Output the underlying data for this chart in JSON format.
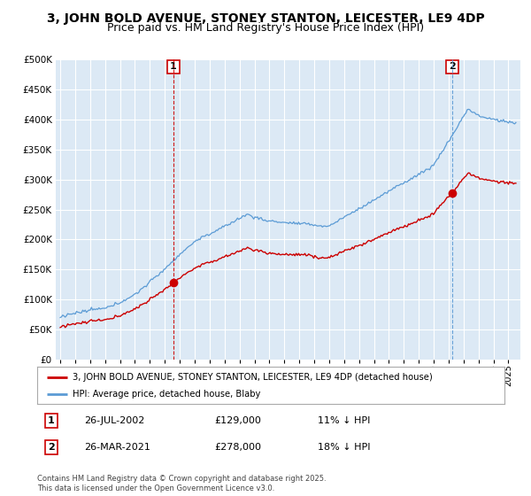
{
  "title": "3, JOHN BOLD AVENUE, STONEY STANTON, LEICESTER, LE9 4DP",
  "subtitle": "Price paid vs. HM Land Registry's House Price Index (HPI)",
  "title_fontsize": 10,
  "subtitle_fontsize": 9,
  "background_color": "#ffffff",
  "chart_bg_color": "#dce9f5",
  "grid_color": "#ffffff",
  "ylim": [
    0,
    500000
  ],
  "yticks": [
    0,
    50000,
    100000,
    150000,
    200000,
    250000,
    300000,
    350000,
    400000,
    450000,
    500000
  ],
  "ytick_labels": [
    "£0",
    "£50K",
    "£100K",
    "£150K",
    "£200K",
    "£250K",
    "£300K",
    "£350K",
    "£400K",
    "£450K",
    "£500K"
  ],
  "sale1_date_num": 2002.57,
  "sale1_price": 129000,
  "sale1_date_str": "26-JUL-2002",
  "sale1_price_str": "£129,000",
  "sale1_note": "11% ↓ HPI",
  "sale2_date_num": 2021.23,
  "sale2_price": 278000,
  "sale2_date_str": "26-MAR-2021",
  "sale2_price_str": "£278,000",
  "sale2_note": "18% ↓ HPI",
  "legend_line1": "3, JOHN BOLD AVENUE, STONEY STANTON, LEICESTER, LE9 4DP (detached house)",
  "legend_line2": "HPI: Average price, detached house, Blaby",
  "footer": "Contains HM Land Registry data © Crown copyright and database right 2025.\nThis data is licensed under the Open Government Licence v3.0.",
  "hpi_color": "#5b9bd5",
  "price_color": "#cc0000",
  "vline1_color": "#cc0000",
  "vline2_color": "#5b9bd5",
  "marker_color": "#cc0000"
}
